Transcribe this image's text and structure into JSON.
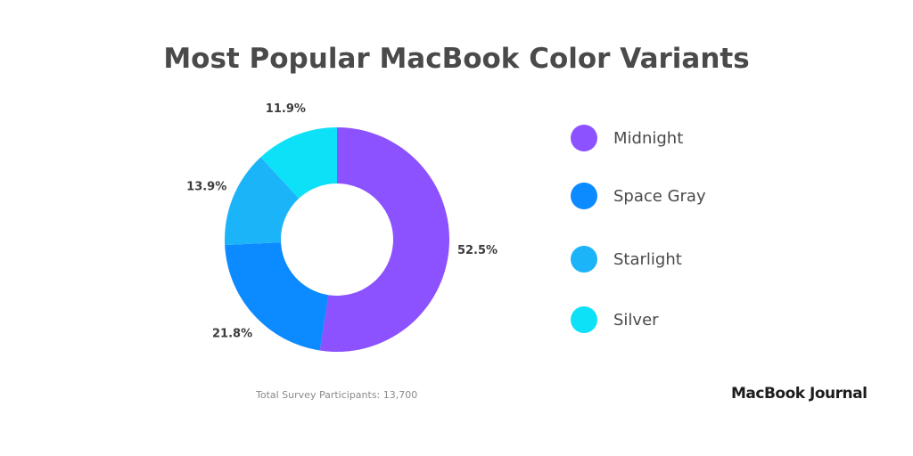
{
  "chart_data": {
    "type": "pie",
    "title": "Most Popular MacBook Color Variants",
    "categories": [
      "Midnight",
      "Space Gray",
      "Starlight",
      "Silver"
    ],
    "values": [
      52.5,
      21.8,
      13.9,
      11.9
    ],
    "value_labels": [
      "52.5%",
      "21.8%",
      "13.9%",
      "11.9%"
    ],
    "colors": [
      "#8c52ff",
      "#0b8bff",
      "#1cb4f8",
      "#0de1f7"
    ],
    "donut": true,
    "legend_position": "right"
  },
  "footnote": "Total Survey Participants: 13,700",
  "brand": "MacBook Journal"
}
